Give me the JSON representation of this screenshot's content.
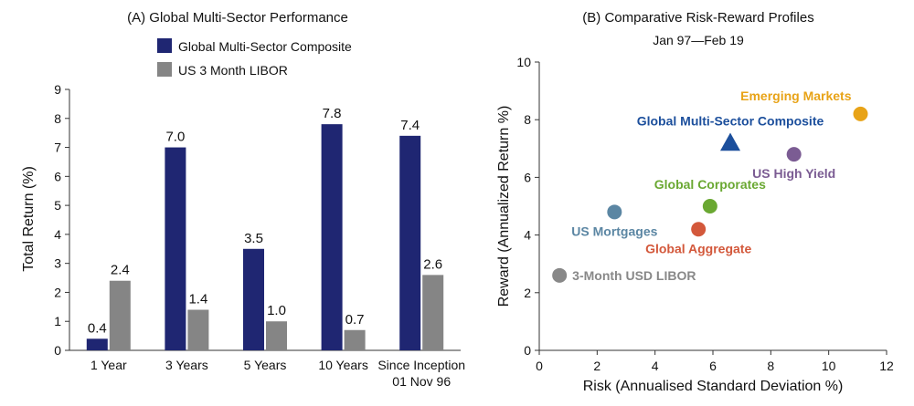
{
  "chart_data": [
    {
      "type": "bar",
      "title": "(A) Global Multi-Sector Performance",
      "ylabel": "Total Return (%)",
      "xlabel": "",
      "ylim": [
        0,
        9
      ],
      "yticks": [
        0,
        1,
        2,
        3,
        4,
        5,
        6,
        7,
        8,
        9
      ],
      "categories": [
        "1 Year",
        "3 Years",
        "5 Years",
        "10 Years",
        "Since Inception\n01 Nov 96"
      ],
      "series": [
        {
          "name": "Global Multi-Sector Composite",
          "color": "#1f2672",
          "values": [
            0.4,
            7.0,
            3.5,
            7.8,
            7.4
          ]
        },
        {
          "name": "US 3 Month LIBOR",
          "color": "#858585",
          "values": [
            2.4,
            1.4,
            1.0,
            0.7,
            2.6
          ]
        }
      ],
      "legend": "top",
      "grid": false
    },
    {
      "type": "scatter",
      "title": "(B) Comparative Risk-Reward Profiles",
      "subtitle": "Jan 97—Feb 19",
      "xlabel": "Risk (Annualised Standard Deviation %)",
      "ylabel": "Reward (Annualized Return %)",
      "xlim": [
        0,
        12
      ],
      "ylim": [
        0,
        10
      ],
      "xticks": [
        0,
        2,
        4,
        6,
        8,
        10,
        12
      ],
      "yticks": [
        0,
        2,
        4,
        6,
        8,
        10
      ],
      "grid": false,
      "points": [
        {
          "name": "Emerging Markets",
          "x": 11.1,
          "y": 8.2,
          "color": "#e8a317",
          "marker": "circle",
          "label_pos": "above-left"
        },
        {
          "name": "Global Multi-Sector Composite",
          "x": 6.6,
          "y": 7.2,
          "color": "#1c4f9c",
          "marker": "triangle",
          "label_pos": "above"
        },
        {
          "name": "US High Yield",
          "x": 8.8,
          "y": 6.8,
          "color": "#7b5c93",
          "marker": "circle",
          "label_pos": "below"
        },
        {
          "name": "Global Corporates",
          "x": 5.9,
          "y": 5.0,
          "color": "#6aa832",
          "marker": "circle",
          "label_pos": "above"
        },
        {
          "name": "US Mortgages",
          "x": 2.6,
          "y": 4.8,
          "color": "#5b86a3",
          "marker": "circle",
          "label_pos": "below"
        },
        {
          "name": "Global Aggregate",
          "x": 5.5,
          "y": 4.2,
          "color": "#d3583b",
          "marker": "circle",
          "label_pos": "below"
        },
        {
          "name": "3-Month USD LIBOR",
          "x": 0.7,
          "y": 2.6,
          "color": "#888888",
          "marker": "circle",
          "label_pos": "right"
        }
      ]
    }
  ]
}
